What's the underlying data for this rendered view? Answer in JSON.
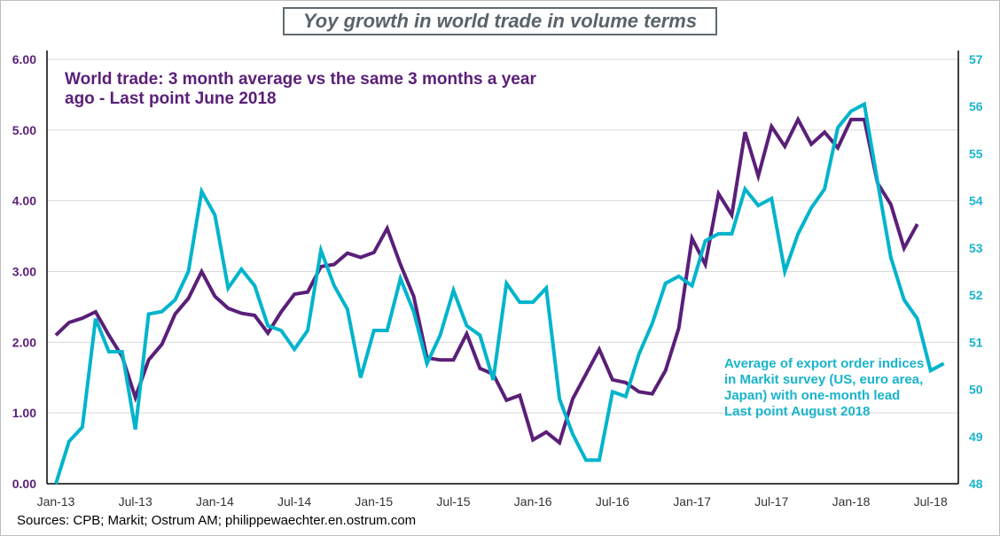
{
  "chart_data": {
    "type": "line",
    "title": "Yoy growth in world trade in volume terms",
    "x_tick_labels": [
      "Jan-13",
      "Jul-13",
      "Jan-14",
      "Jul-14",
      "Jan-15",
      "Jul-15",
      "Jan-16",
      "Jul-16",
      "Jan-17",
      "Jul-17",
      "Jan-18",
      "Jul-18"
    ],
    "left_axis": {
      "ylim": [
        0,
        6
      ],
      "ticks": [
        "0.00",
        "1.00",
        "2.00",
        "3.00",
        "4.00",
        "5.00",
        "6.00"
      ]
    },
    "right_axis": {
      "ylim": [
        48,
        57
      ],
      "ticks": [
        "48",
        "49",
        "50",
        "51",
        "52",
        "53",
        "54",
        "55",
        "56",
        "57"
      ]
    },
    "grid": "horizontal",
    "series": [
      {
        "name": "World trade: 3 month average vs the same 3 months a year ago - Last point June 2018",
        "axis": "left",
        "color": "#5a1f78",
        "start": "Jan-13",
        "values": [
          2.1,
          2.28,
          2.34,
          2.43,
          2.1,
          1.8,
          1.22,
          1.75,
          1.97,
          2.4,
          2.62,
          3.0,
          2.65,
          2.48,
          2.41,
          2.38,
          2.13,
          2.43,
          2.68,
          2.71,
          3.07,
          3.1,
          3.26,
          3.2,
          3.27,
          3.61,
          3.1,
          2.65,
          1.78,
          1.75,
          1.75,
          2.12,
          1.63,
          1.55,
          1.18,
          1.25,
          0.62,
          0.73,
          0.58,
          1.2,
          1.55,
          1.9,
          1.47,
          1.43,
          1.3,
          1.27,
          1.6,
          2.2,
          3.47,
          3.1,
          4.1,
          3.8,
          4.97,
          4.35,
          5.05,
          4.77,
          5.15,
          4.8,
          4.97,
          4.75,
          5.15,
          5.15,
          4.25,
          3.95,
          3.33,
          3.67
        ]
      },
      {
        "name": "Average of export order indices in Markit survey (US, euro area, Japan) with one-month lead Last point August 2018",
        "axis": "right",
        "color": "#00b4cc",
        "start": "Jan-13",
        "values": [
          48.0,
          48.9,
          49.2,
          51.5,
          50.8,
          50.8,
          49.15,
          51.6,
          51.65,
          51.9,
          52.5,
          54.2,
          53.7,
          52.15,
          52.55,
          52.2,
          51.35,
          51.25,
          50.85,
          51.25,
          52.95,
          52.2,
          51.7,
          50.25,
          51.25,
          51.25,
          52.35,
          51.65,
          50.55,
          51.15,
          52.1,
          51.35,
          51.15,
          50.2,
          52.25,
          51.85,
          51.85,
          52.15,
          49.8,
          49.05,
          48.5,
          48.5,
          49.95,
          49.85,
          50.75,
          51.4,
          52.25,
          52.4,
          52.2,
          53.15,
          53.3,
          53.3,
          54.25,
          53.9,
          54.05,
          52.5,
          53.3,
          53.85,
          54.25,
          55.55,
          55.9,
          56.05,
          54.4,
          52.8,
          51.9,
          51.5,
          50.4,
          50.55
        ]
      }
    ],
    "annotations": {
      "world_trade": "World trade: 3 month average vs the same 3 months a year ago - Last point June 2018",
      "export_orders": "Average of export order indices in Markit survey (US, euro area, Japan) with one-month lead",
      "export_orders_last": "Last point August 2018"
    }
  },
  "sources": "Sources: CPB; Markit; Ostrum AM; philippewaechter.en.ostrum.com"
}
